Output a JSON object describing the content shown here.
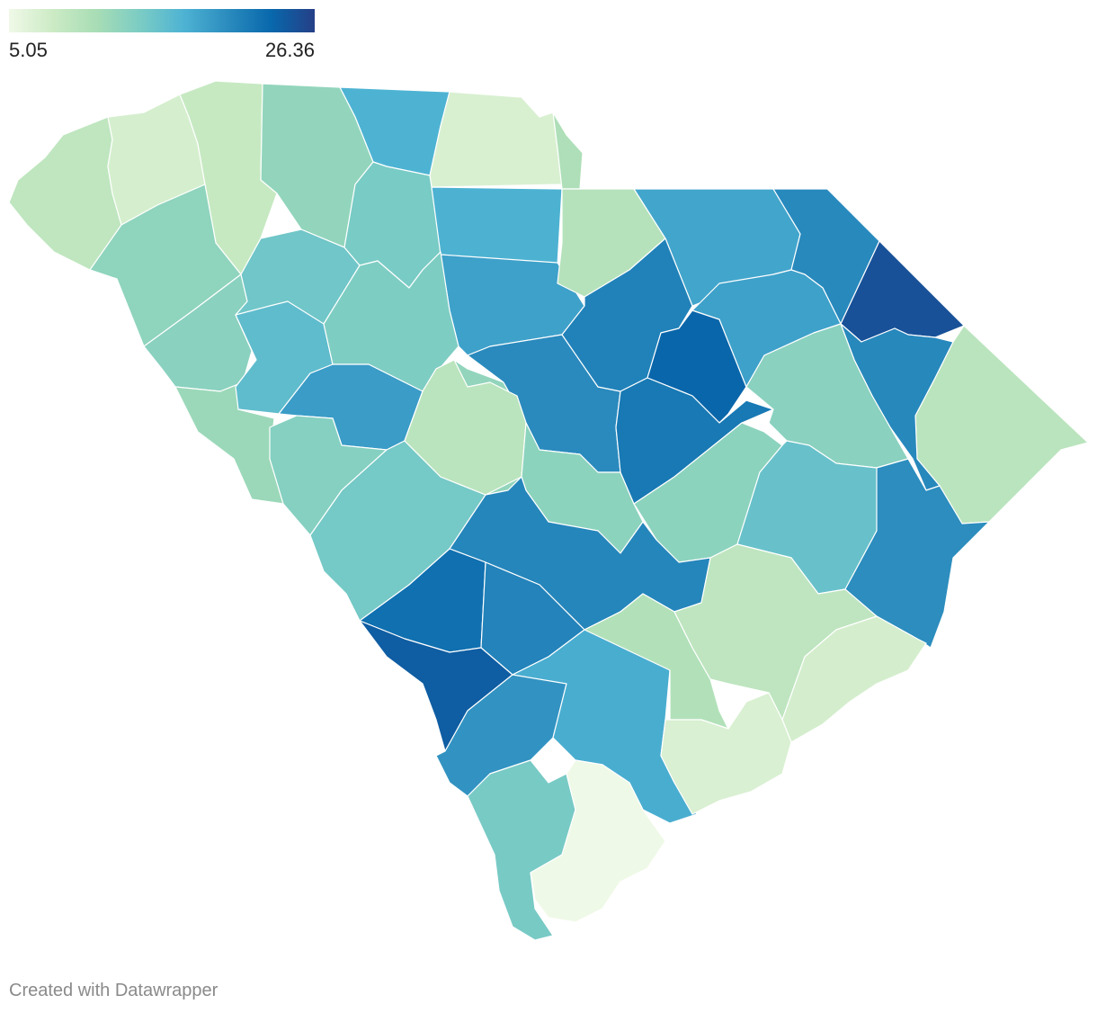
{
  "legend": {
    "min_label": "5.05",
    "max_label": "26.36",
    "min": 5.05,
    "max": 26.36,
    "gradient": [
      "#f0f9e8",
      "#ccebc5",
      "#a8ddb5",
      "#7bccc4",
      "#4eb3d3",
      "#2b8cbe",
      "#0868ac",
      "#253f87"
    ]
  },
  "footer": {
    "credit": "Created with Datawrapper"
  },
  "counties": [
    {
      "id": "oconee",
      "value": 9.2
    },
    {
      "id": "pickens",
      "value": 7.3
    },
    {
      "id": "greenville",
      "value": 8.6
    },
    {
      "id": "spartanburg",
      "value": 12.6
    },
    {
      "id": "cherokee",
      "value": 17.2
    },
    {
      "id": "york",
      "value": 7.1
    },
    {
      "id": "lancaster-north",
      "value": 10.6
    },
    {
      "id": "anderson",
      "value": 12.8
    },
    {
      "id": "abbeville",
      "value": 13.2
    },
    {
      "id": "laurens",
      "value": 14.9
    },
    {
      "id": "union",
      "value": 14.3
    },
    {
      "id": "chester",
      "value": 17.3
    },
    {
      "id": "lancaster",
      "value": 18.6
    },
    {
      "id": "chesterfield",
      "value": 10.0
    },
    {
      "id": "marlboro",
      "value": 18.3
    },
    {
      "id": "dillon",
      "value": 20.5
    },
    {
      "id": "horry-north",
      "value": 25.0
    },
    {
      "id": "horry",
      "value": 9.6
    },
    {
      "id": "mccormick",
      "value": 12.0
    },
    {
      "id": "greenwood",
      "value": 16.1
    },
    {
      "id": "newberry",
      "value": 14.0
    },
    {
      "id": "fairfield",
      "value": 19.0
    },
    {
      "id": "kershaw",
      "value": 12.6
    },
    {
      "id": "darlington",
      "value": 20.4
    },
    {
      "id": "florence",
      "value": 21.1
    },
    {
      "id": "marion",
      "value": 23.5
    },
    {
      "id": "edgefield",
      "value": 13.5
    },
    {
      "id": "saluda",
      "value": 14.6
    },
    {
      "id": "lexington",
      "value": 9.6
    },
    {
      "id": "richland",
      "value": 13.0
    },
    {
      "id": "lee",
      "value": 21.9
    },
    {
      "id": "sumter",
      "value": 18.6
    },
    {
      "id": "williamsburg",
      "value": 20.6
    },
    {
      "id": "georgetown",
      "value": 13.2
    },
    {
      "id": "aiken",
      "value": 13.0
    },
    {
      "id": "calhoun",
      "value": 15.5
    },
    {
      "id": "orangeburg",
      "value": 20.2
    },
    {
      "id": "clarendon",
      "value": 20.8
    },
    {
      "id": "barnwell",
      "value": 22.6
    },
    {
      "id": "bamberg",
      "value": 21.0
    },
    {
      "id": "allendale",
      "value": 24.1
    },
    {
      "id": "hampton",
      "value": 19.7
    },
    {
      "id": "colleton",
      "value": 17.7
    },
    {
      "id": "dorchester",
      "value": 10.3
    },
    {
      "id": "berkeley",
      "value": 9.3
    },
    {
      "id": "charleston",
      "value": 7.4
    },
    {
      "id": "charleston-south",
      "value": 7.0
    },
    {
      "id": "jasper",
      "value": 14.4
    },
    {
      "id": "beaufort",
      "value": 5.1
    }
  ]
}
